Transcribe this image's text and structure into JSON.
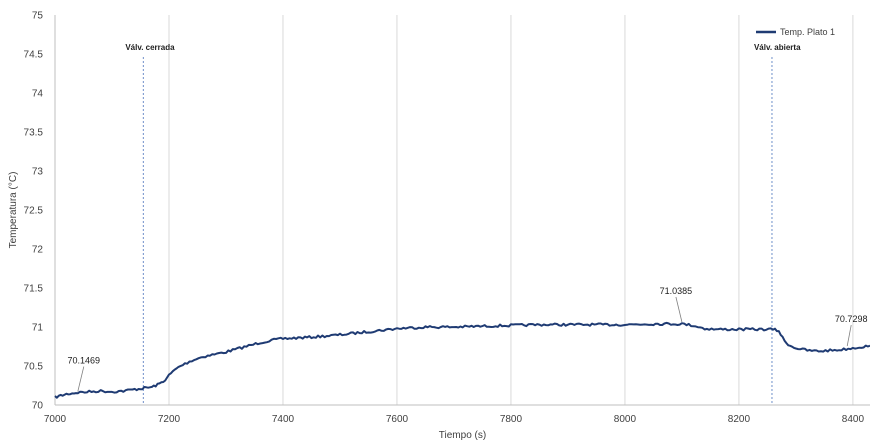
{
  "chart_data": {
    "type": "line",
    "xlabel": "Tiempo (s)",
    "ylabel": "Temperatura (°C)",
    "xlim": [
      7000,
      8430
    ],
    "ylim": [
      70,
      75
    ],
    "xticks": [
      7000,
      7200,
      7400,
      7600,
      7800,
      8000,
      8200,
      8400
    ],
    "yticks": [
      70,
      70.5,
      71,
      71.5,
      72,
      72.5,
      73,
      73.5,
      74,
      74.5,
      75
    ],
    "grid": "vertical",
    "legend_position": "top-right",
    "series_color": "#1f3b73",
    "series": [
      {
        "name": "Temp. Plato 1",
        "x": [
          7000,
          7010,
          7020,
          7030,
          7040,
          7060,
          7080,
          7100,
          7120,
          7140,
          7150,
          7160,
          7170,
          7180,
          7190,
          7200,
          7210,
          7220,
          7240,
          7260,
          7280,
          7300,
          7320,
          7340,
          7360,
          7380,
          7400,
          7450,
          7500,
          7550,
          7600,
          7650,
          7700,
          7750,
          7800,
          7850,
          7900,
          7950,
          8000,
          8050,
          8100,
          8120,
          8140,
          8160,
          8200,
          8240,
          8260,
          8270,
          8280,
          8290,
          8300,
          8320,
          8340,
          8360,
          8380,
          8400,
          8430
        ],
        "y": [
          70.1,
          70.12,
          70.14,
          70.15,
          70.16,
          70.17,
          70.18,
          70.17,
          70.18,
          70.2,
          70.21,
          70.22,
          70.23,
          70.26,
          70.3,
          70.38,
          70.45,
          70.5,
          70.57,
          70.62,
          70.65,
          70.68,
          70.72,
          70.76,
          70.8,
          70.83,
          70.85,
          70.87,
          70.9,
          70.94,
          70.98,
          71.0,
          71.0,
          71.01,
          71.02,
          71.03,
          71.03,
          71.03,
          71.03,
          71.04,
          71.04,
          71.02,
          70.98,
          70.97,
          70.97,
          70.97,
          70.97,
          70.95,
          70.82,
          70.76,
          70.73,
          70.7,
          70.69,
          70.7,
          70.71,
          70.73,
          70.76
        ]
      }
    ],
    "annotations": [
      {
        "label": "70.1469",
        "x": 7040,
        "y": 70.1469
      },
      {
        "label": "71.0385",
        "x": 8100,
        "y": 71.0385
      },
      {
        "label": "70.7298",
        "x": 8390,
        "y": 70.7298
      }
    ],
    "events": [
      {
        "label": "Válv. cerrada",
        "x": 7155
      },
      {
        "label": "Válv. abierta",
        "x": 8258
      }
    ]
  }
}
